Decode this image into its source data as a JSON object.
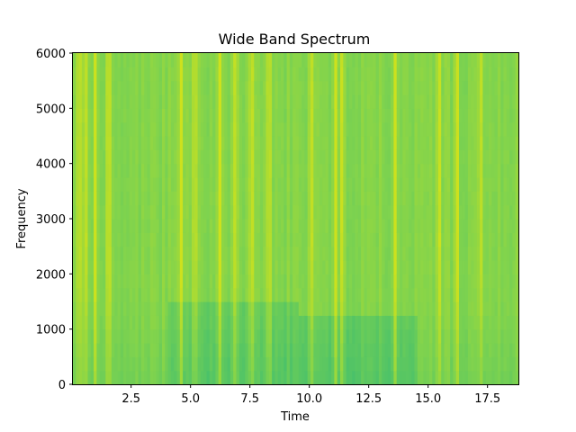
{
  "chart_data": {
    "type": "heatmap",
    "title": "Wide Band Spectrum",
    "xlabel": "Time",
    "ylabel": "Frequency",
    "xlim": [
      0.05,
      18.8
    ],
    "ylim": [
      0,
      6000
    ],
    "xticks": [
      2.5,
      5.0,
      7.5,
      10.0,
      12.5,
      15.0,
      17.5
    ],
    "xtick_labels": [
      "2.5",
      "5.0",
      "7.5",
      "10.0",
      "12.5",
      "15.0",
      "17.5"
    ],
    "yticks": [
      0,
      1000,
      2000,
      3000,
      4000,
      5000,
      6000
    ],
    "ytick_labels": [
      "0",
      "1000",
      "2000",
      "3000",
      "4000",
      "5000",
      "6000"
    ],
    "grid": false,
    "colormap": "viridis",
    "colors": {
      "low": "#3dbd71",
      "mid": "#7fd34e",
      "high": "#cde11d"
    },
    "bright_bands_time": [
      0.3,
      0.6,
      1.0,
      1.55,
      4.6,
      5.2,
      6.25,
      6.9,
      7.55,
      8.3,
      10.1,
      11.1,
      11.35,
      13.6,
      15.45,
      16.2,
      17.2
    ],
    "quiet_regions": [
      {
        "time_range": [
          4.0,
          9.5
        ],
        "freq_range": [
          0,
          1500
        ],
        "level": "low"
      },
      {
        "time_range": [
          9.5,
          14.5
        ],
        "freq_range": [
          0,
          1300
        ],
        "level": "low"
      }
    ]
  }
}
